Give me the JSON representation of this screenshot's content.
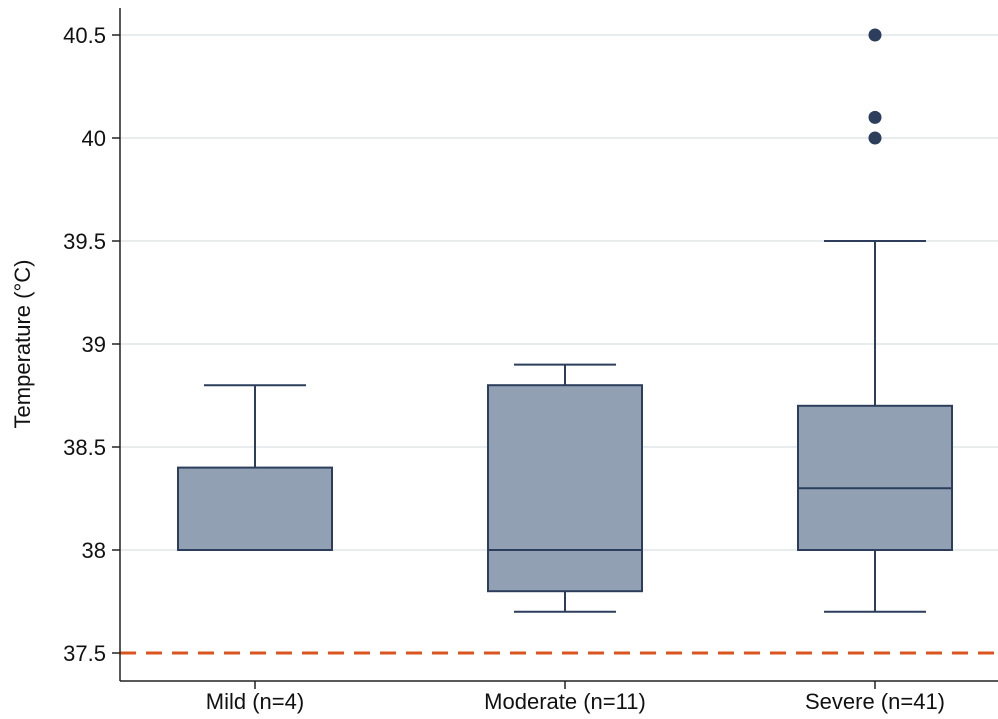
{
  "chart_data": {
    "type": "box",
    "ylabel": "Temperature (°C)",
    "xlabel": "",
    "ylim": [
      37.5,
      40.5
    ],
    "yticks": [
      37.5,
      38,
      38.5,
      39,
      39.5,
      40,
      40.5
    ],
    "ytick_labels": [
      "37.5",
      "38",
      "38.5",
      "39",
      "39.5",
      "40",
      "40.5"
    ],
    "grid": true,
    "reference_line": {
      "y": 37.5,
      "style": "dashed",
      "color": "#d9541e"
    },
    "colors": {
      "box_fill": "#91a1b3",
      "box_stroke": "#2c3e5c",
      "outlier": "#2c3e5c",
      "grid": "#e8ecec"
    },
    "categories": [
      "Mild (n=4)",
      "Moderate (n=11)",
      "Severe (n=41)"
    ],
    "boxes": [
      {
        "category": "Mild (n=4)",
        "whisker_low": 38.0,
        "q1": 38.0,
        "median": 38.0,
        "q3": 38.4,
        "whisker_high": 38.8,
        "outliers": []
      },
      {
        "category": "Moderate (n=11)",
        "whisker_low": 37.7,
        "q1": 37.8,
        "median": 38.0,
        "q3": 38.8,
        "whisker_high": 38.9,
        "outliers": []
      },
      {
        "category": "Severe (n=41)",
        "whisker_low": 37.7,
        "q1": 38.0,
        "median": 38.3,
        "q3": 38.7,
        "whisker_high": 39.5,
        "outliers": [
          40.0,
          40.1,
          40.5
        ]
      }
    ]
  }
}
